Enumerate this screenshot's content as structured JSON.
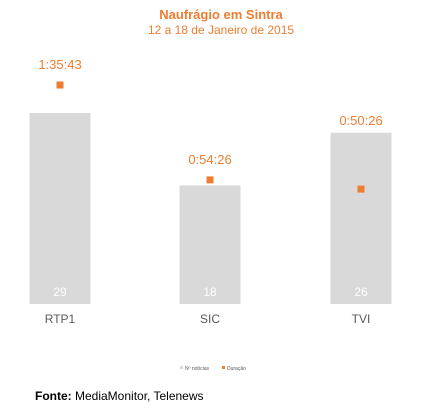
{
  "colors": {
    "bar": "#d9d9d9",
    "accent": "#ed7d31",
    "bar_label": "#ffffff",
    "category": "#595959"
  },
  "chart_data": {
    "type": "bar",
    "title": "Naufrágio em Sintra",
    "subtitle": "12 a 18 de Janeiro de 2015",
    "categories": [
      "RTP1",
      "SIC",
      "TVI"
    ],
    "series": [
      {
        "name": "Nº notícias",
        "type": "bar",
        "values": [
          29,
          18,
          26
        ],
        "labels": [
          "29",
          "18",
          "26"
        ]
      },
      {
        "name": "Duração",
        "type": "marker",
        "values": [
          "1:35:43",
          "0:54:26",
          "0:50:26"
        ],
        "labels": [
          "1:35:43",
          "0:54:26",
          "0:50:26"
        ]
      }
    ],
    "legend_position": "bottom",
    "grid": false
  },
  "source": {
    "label": "Fonte:",
    "text": "MediaMonitor, Telenews"
  }
}
